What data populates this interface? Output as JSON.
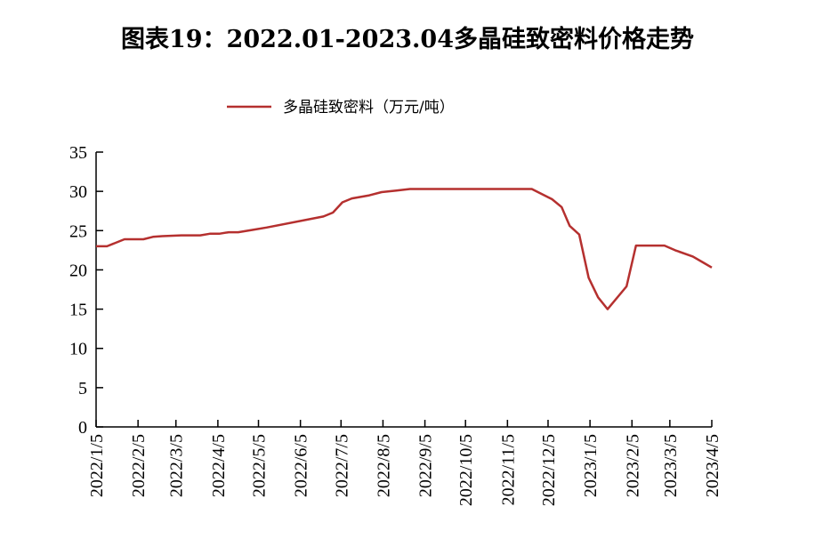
{
  "chart_data": {
    "type": "line",
    "title": "图表19：2022.01-2023.04多晶硅致密料价格走势",
    "xlabel": "",
    "ylabel": "",
    "ylim": [
      0,
      35
    ],
    "yticks": [
      "0",
      "5",
      "10",
      "15",
      "20",
      "25",
      "30",
      "35"
    ],
    "xticks": [
      "2022/1/5",
      "2022/2/5",
      "2022/3/5",
      "2022/4/5",
      "2022/5/5",
      "2022/6/5",
      "2022/7/5",
      "2022/8/5",
      "2022/9/5",
      "2022/10/5",
      "2022/11/5",
      "2022/12/5",
      "2023/1/5",
      "2023/2/5",
      "2023/3/5",
      "2023/4/5"
    ],
    "legend_position": "top",
    "grid": false,
    "series": [
      {
        "name": "多晶硅致密料（万元/吨）",
        "color": "#b5302f",
        "x": [
          "2022-01-05",
          "2022-01-13",
          "2022-01-26",
          "2022-02-09",
          "2022-02-16",
          "2022-02-23",
          "2022-03-09",
          "2022-03-23",
          "2022-03-30",
          "2022-04-06",
          "2022-04-13",
          "2022-04-20",
          "2022-05-01",
          "2022-05-11",
          "2022-06-22",
          "2022-06-29",
          "2022-07-06",
          "2022-07-13",
          "2022-07-26",
          "2022-08-04",
          "2022-08-15",
          "2022-08-25",
          "2022-11-23",
          "2022-12-08",
          "2022-12-15",
          "2022-12-21",
          "2022-12-28",
          "2023-01-04",
          "2023-01-11",
          "2023-01-18",
          "2023-02-01",
          "2023-02-08",
          "2023-03-01",
          "2023-03-09",
          "2023-03-22",
          "2023-03-30",
          "2023-04-05"
        ],
        "values": [
          23.0,
          23.0,
          23.9,
          23.9,
          24.2,
          24.3,
          24.4,
          24.4,
          24.6,
          24.6,
          24.8,
          24.8,
          25.1,
          25.4,
          26.8,
          27.3,
          28.6,
          29.1,
          29.5,
          29.9,
          30.1,
          30.3,
          30.3,
          29.0,
          28.0,
          25.6,
          24.5,
          19.0,
          16.5,
          15.0,
          17.9,
          23.1,
          23.1,
          22.5,
          21.7,
          20.9,
          20.3
        ]
      }
    ]
  }
}
